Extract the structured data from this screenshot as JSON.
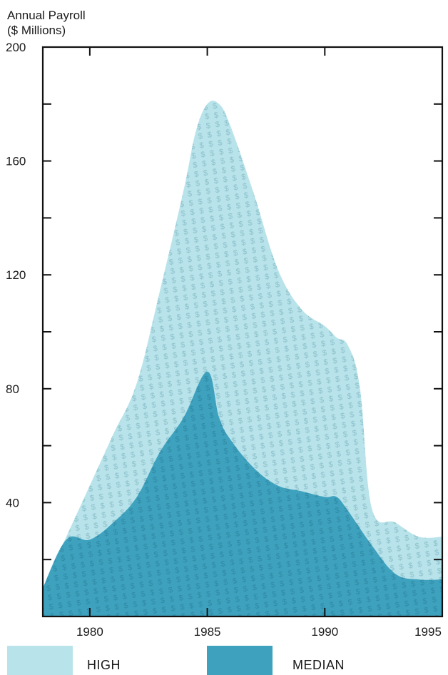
{
  "chart_data": {
    "type": "area",
    "ylabel": [
      "Annual Payroll",
      "($ Millions)"
    ],
    "ylim": [
      0,
      200
    ],
    "xlim": [
      1978,
      1995
    ],
    "yticks_labeled": [
      40,
      80,
      120,
      160,
      200
    ],
    "yticks_minor": [
      20,
      60,
      100,
      140,
      180
    ],
    "xticks": [
      1980,
      1985,
      1990,
      1995
    ],
    "legend_placement": "bottom",
    "series": [
      {
        "name": "HIGH",
        "color": "#b9e3ea",
        "pattern": "dollar-sign",
        "x": [
          1978,
          1979,
          1980,
          1981,
          1982,
          1983,
          1984,
          1984.5,
          1985,
          1985.5,
          1986,
          1987,
          1988,
          1989,
          1990,
          1990.5,
          1991,
          1991.5,
          1992,
          1993,
          1994,
          1995
        ],
        "y": [
          10,
          28,
          46,
          64,
          82,
          115,
          150,
          170,
          180,
          180,
          172,
          148,
          122,
          108,
          102,
          98,
          95,
          80,
          38,
          33,
          28,
          28
        ]
      },
      {
        "name": "MEDIAN",
        "color": "#3ea2be",
        "x": [
          1978,
          1979,
          1980,
          1981,
          1982,
          1983,
          1984,
          1985,
          1985.5,
          1986,
          1987,
          1988,
          1989,
          1990,
          1990.5,
          1991,
          1992,
          1993,
          1994,
          1995
        ],
        "y": [
          10,
          27,
          27,
          33,
          42,
          58,
          70,
          86,
          70,
          62,
          52,
          46,
          44,
          42,
          42,
          37,
          25,
          15,
          13,
          13
        ]
      }
    ]
  }
}
